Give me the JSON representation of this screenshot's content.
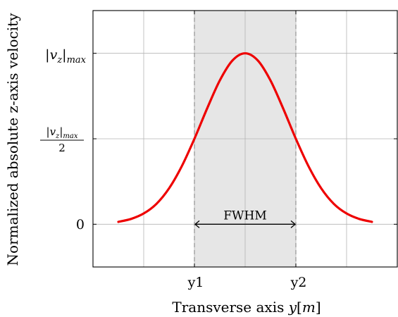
{
  "chart_data": {
    "type": "line",
    "title": "",
    "xlabel_prefix": "Transverse axis ",
    "xlabel_var": "y",
    "xlabel_unit": "m",
    "ylabel": "Normalized absolute z-axis velocity",
    "xlim": [
      -3,
      3
    ],
    "ylim": [
      -0.25,
      1.25
    ],
    "grid": true,
    "x_ticks": [
      {
        "value": -1,
        "label": "y1"
      },
      {
        "value": 1,
        "label": "y2"
      }
    ],
    "y_tick_zero": {
      "value": 0,
      "label": "0"
    },
    "y_tick_max": {
      "value": 1,
      "var": "v",
      "sub": "z",
      "suffix": "max"
    },
    "y_tick_half": {
      "value": 0.5,
      "var": "v",
      "sub": "z",
      "suffix": "max",
      "denominator": "2"
    },
    "series": [
      {
        "color": "#ee0000",
        "x": [
          -2.5,
          -2.25,
          -2,
          -1.75,
          -1.5,
          -1.25,
          -1,
          -0.75,
          -0.5,
          -0.25,
          0,
          0.25,
          0.5,
          0.75,
          1,
          1.25,
          1.5,
          1.75,
          2,
          2.25,
          2.5
        ],
        "y": [
          0.014,
          0.031,
          0.063,
          0.119,
          0.21,
          0.339,
          0.5,
          0.677,
          0.841,
          0.958,
          1.0,
          0.958,
          0.841,
          0.677,
          0.5,
          0.339,
          0.21,
          0.119,
          0.063,
          0.031,
          0.014
        ]
      }
    ],
    "shaded_region": {
      "x": [
        -1,
        1
      ],
      "color": "#e6e6e6"
    },
    "annotation": {
      "label": "FWHM",
      "x": [
        -1,
        1
      ],
      "y": 0
    }
  }
}
